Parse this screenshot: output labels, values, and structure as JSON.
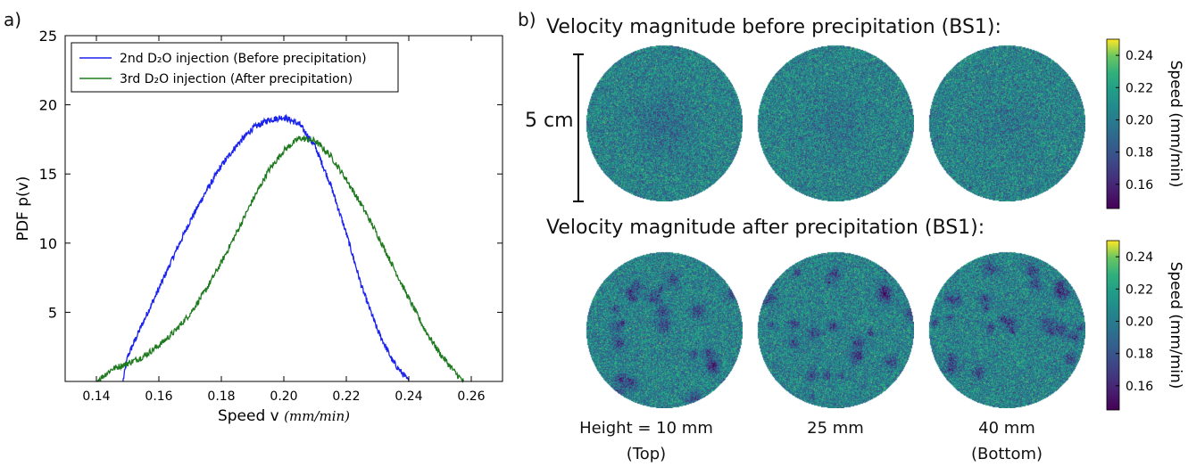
{
  "panels": {
    "a_label": "a)",
    "b_label": "b)"
  },
  "chart_data": [
    {
      "type": "line",
      "xlabel": "Speed v",
      "xlabel_unit": "(mm/min)",
      "ylabel": "PDF p(v)",
      "xlim": [
        0.13,
        0.27
      ],
      "ylim": [
        0,
        25
      ],
      "xticks": [
        "0.14",
        "0.16",
        "0.18",
        "0.20",
        "0.22",
        "0.24",
        "0.26"
      ],
      "yticks": [
        "5",
        "10",
        "15",
        "20",
        "25"
      ],
      "grid": false,
      "legend_position": "top-left",
      "series": [
        {
          "name": "2nd D₂O injection (Before precipitation)",
          "color": "#1a22ee",
          "x": [
            0.1485,
            0.15,
            0.155,
            0.16,
            0.165,
            0.17,
            0.175,
            0.18,
            0.185,
            0.19,
            0.195,
            0.2,
            0.205,
            0.21,
            0.215,
            0.22,
            0.225,
            0.23,
            0.235,
            0.24
          ],
          "y": [
            0,
            1.8,
            4.3,
            6.7,
            9.2,
            11.6,
            13.7,
            15.6,
            17.1,
            18.3,
            18.9,
            19.1,
            18.6,
            17.0,
            14.2,
            10.7,
            6.8,
            3.7,
            1.4,
            0
          ]
        },
        {
          "name": "3rd D₂O injection (After precipitation)",
          "color": "#1f7a1f",
          "x": [
            0.14,
            0.145,
            0.15,
            0.155,
            0.16,
            0.165,
            0.17,
            0.175,
            0.18,
            0.185,
            0.19,
            0.195,
            0.2,
            0.205,
            0.21,
            0.215,
            0.22,
            0.225,
            0.23,
            0.235,
            0.24,
            0.245,
            0.25,
            0.255,
            0.2575
          ],
          "y": [
            0,
            0.9,
            1.3,
            1.8,
            2.6,
            3.6,
            4.9,
            6.6,
            8.6,
            10.8,
            13.1,
            15.2,
            16.7,
            17.6,
            17.4,
            16.3,
            14.6,
            12.7,
            10.6,
            8.3,
            6.0,
            3.8,
            2.0,
            0.6,
            0
          ]
        }
      ]
    },
    {
      "type": "heatmap",
      "title": "Velocity magnitude before precipitation (BS1):",
      "colorbar": {
        "label": "Speed (mm/min)",
        "ticks": [
          "0.16",
          "0.18",
          "0.20",
          "0.22",
          "0.24"
        ],
        "range": [
          0.145,
          0.25
        ]
      },
      "discs": [
        {
          "height": "10 mm"
        },
        {
          "height": "25 mm"
        },
        {
          "height": "40 mm"
        }
      ]
    },
    {
      "type": "heatmap",
      "title": "Velocity magnitude after precipitation (BS1):",
      "colorbar": {
        "label": "Speed (mm/min)",
        "ticks": [
          "0.16",
          "0.18",
          "0.20",
          "0.22",
          "0.24"
        ],
        "range": [
          0.145,
          0.25
        ]
      },
      "discs": [
        {
          "height": "10 mm"
        },
        {
          "height": "25 mm"
        },
        {
          "height": "40 mm"
        }
      ]
    }
  ],
  "scale_bar": {
    "label": "5 cm"
  },
  "bottom_labels": {
    "first": [
      "Height = 10 mm",
      "(Top)"
    ],
    "second": [
      "25 mm"
    ],
    "third": [
      "40 mm",
      "(Bottom)"
    ]
  }
}
